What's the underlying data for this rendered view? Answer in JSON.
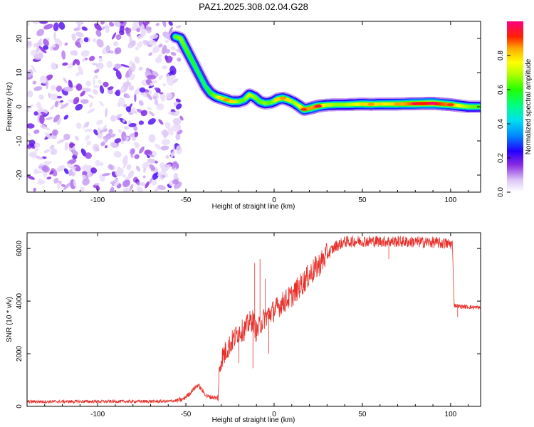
{
  "title": "PAZ1.2025.308.02.04.G28",
  "chart_data": [
    {
      "type": "heatmap",
      "name": "spectrogram",
      "xlabel": "Height of straight line (km)",
      "ylabel": "Frequency (Hz)",
      "xlim": [
        -140,
        117
      ],
      "ylim": [
        -25,
        25
      ],
      "xticks": [
        -100,
        -50,
        0,
        50,
        100
      ],
      "yticks": [
        -20,
        -10,
        0,
        10,
        20
      ],
      "noise_region_x": [
        -140,
        -52
      ],
      "ridge": {
        "x": [
          -56,
          -53,
          -50,
          -46,
          -42,
          -39,
          -36,
          -33,
          -30,
          -27,
          -24,
          -20,
          -17,
          -14,
          -11,
          -8,
          -5,
          -2,
          0,
          2,
          5,
          8,
          11,
          14,
          17,
          20,
          25,
          30,
          35,
          40,
          45,
          50,
          55,
          60,
          70,
          80,
          90,
          100,
          110,
          117
        ],
        "y": [
          20.5,
          20,
          17,
          13,
          9,
          6,
          4,
          3,
          2.5,
          2,
          1.5,
          1.5,
          2,
          3.5,
          2.8,
          1.5,
          1,
          1.2,
          1.6,
          2.2,
          2.5,
          2,
          1.3,
          0.3,
          -0.8,
          -0.5,
          0.2,
          0.5,
          0.6,
          0.6,
          0.7,
          0.8,
          0.7,
          0.8,
          0.8,
          0.9,
          1,
          0.6,
          0,
          0
        ],
        "amplitude": [
          0.55,
          0.6,
          0.55,
          0.5,
          0.45,
          0.45,
          0.5,
          0.6,
          0.7,
          0.75,
          0.7,
          0.6,
          0.55,
          0.65,
          0.6,
          0.55,
          0.6,
          0.55,
          0.6,
          0.7,
          0.75,
          0.7,
          0.6,
          0.65,
          0.8,
          0.75,
          0.85,
          0.65,
          0.6,
          0.6,
          0.65,
          0.7,
          0.75,
          0.7,
          0.75,
          0.85,
          0.9,
          0.8,
          0.6,
          0.55
        ]
      }
    },
    {
      "type": "colorbar",
      "label": "Normalized spectral amplitude",
      "range": [
        0,
        1
      ],
      "ticks": [
        "0.0",
        "0.2",
        "0.4",
        "0.6",
        "0.8"
      ],
      "tick_values": [
        0,
        0.2,
        0.4,
        0.6,
        0.8
      ]
    },
    {
      "type": "line",
      "name": "snr",
      "color": "#e8302a",
      "xlabel": "Height of straight line (km)",
      "ylabel": "SNR (10 * v/v)",
      "xlim": [
        -140,
        117
      ],
      "ylim": [
        0,
        6600
      ],
      "xticks": [
        -100,
        -50,
        0,
        50,
        100
      ],
      "yticks": [
        0,
        2000,
        4000,
        6000
      ],
      "envelope": {
        "x": [
          -140,
          -60,
          -52,
          -48,
          -45,
          -43,
          -41,
          -38,
          -35,
          -32,
          -31,
          -30,
          -27,
          -24,
          -20,
          -17,
          -14,
          -12,
          -11,
          -10,
          -8,
          -5,
          0,
          5,
          10,
          15,
          20,
          25,
          30,
          35,
          40,
          50,
          60,
          70,
          80,
          90,
          100,
          101,
          102,
          105,
          110,
          117
        ],
        "y": [
          180,
          190,
          250,
          480,
          700,
          820,
          620,
          380,
          350,
          300,
          1300,
          1800,
          2150,
          2450,
          2850,
          2900,
          3200,
          3300,
          3050,
          2800,
          3100,
          3400,
          3650,
          3950,
          4200,
          4600,
          5000,
          5350,
          5750,
          6100,
          6250,
          6280,
          6270,
          6260,
          6250,
          6230,
          6170,
          6170,
          3850,
          3800,
          3780,
          3750
        ]
      },
      "spikes": [
        {
          "x": -8,
          "y": 5600
        },
        {
          "x": -11,
          "y": 5450
        },
        {
          "x": -12,
          "y": 1450
        },
        {
          "x": -5,
          "y": 4850
        },
        {
          "x": -3,
          "y": 2000
        },
        {
          "x": -28,
          "y": 1650
        },
        {
          "x": -20,
          "y": 1650
        },
        {
          "x": 104,
          "y": 3400
        },
        {
          "x": 65,
          "y": 5600
        }
      ]
    }
  ]
}
